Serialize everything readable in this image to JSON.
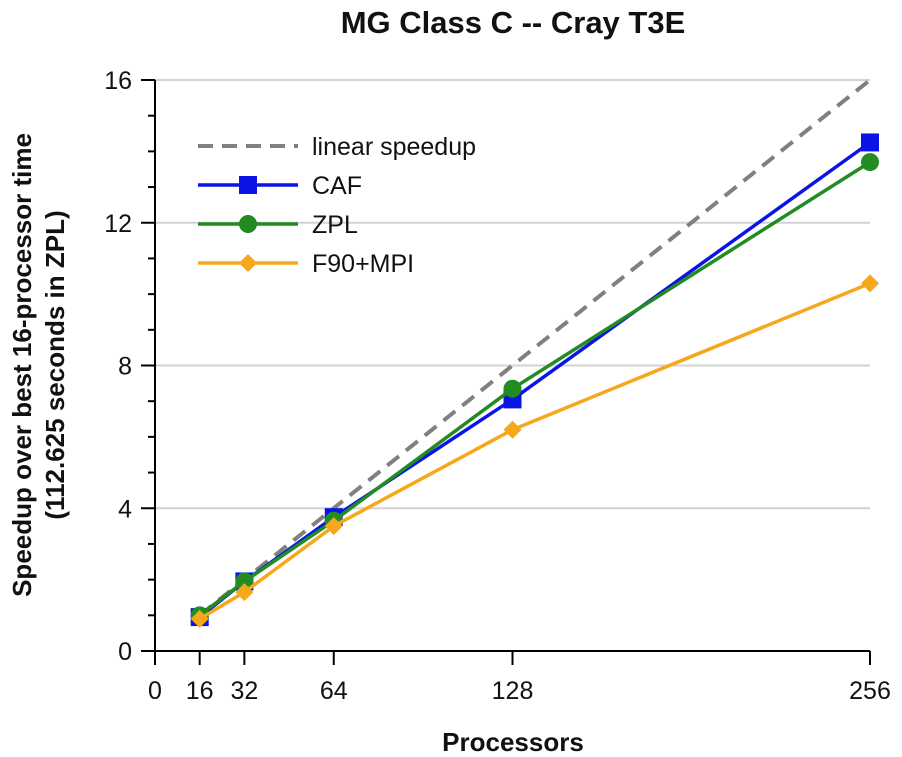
{
  "chart_data": {
    "type": "line",
    "title": "MG Class C -- Cray T3E",
    "xlabel": "Processors",
    "ylabel_line1": "Speedup over best 16-processor time",
    "ylabel_line2": "(112.625 seconds in ZPL)",
    "xlim": [
      0,
      256
    ],
    "ylim": [
      0,
      16
    ],
    "x_ticks": [
      0,
      16,
      32,
      64,
      128,
      256
    ],
    "y_ticks": [
      0,
      4,
      8,
      12,
      16
    ],
    "grid": "horizontal",
    "legend_position": "top-left",
    "x": [
      16,
      32,
      64,
      128,
      256
    ],
    "series": [
      {
        "name": "linear speedup",
        "x": [
          16,
          256
        ],
        "values": [
          1,
          16
        ],
        "color": "#808080",
        "style": "dashed",
        "marker": "none"
      },
      {
        "name": "CAF",
        "x": [
          16,
          32,
          64,
          128,
          256
        ],
        "values": [
          0.95,
          1.95,
          3.75,
          7.05,
          14.25
        ],
        "color": "#0a14e6",
        "style": "solid",
        "marker": "square"
      },
      {
        "name": "ZPL",
        "x": [
          16,
          32,
          64,
          128,
          256
        ],
        "values": [
          1.0,
          1.95,
          3.65,
          7.35,
          13.7
        ],
        "color": "#228b22",
        "style": "solid",
        "marker": "circle"
      },
      {
        "name": "F90+MPI",
        "x": [
          16,
          32,
          64,
          128,
          256
        ],
        "values": [
          0.9,
          1.65,
          3.5,
          6.2,
          10.3
        ],
        "color": "#f5a81c",
        "style": "solid",
        "marker": "diamond"
      }
    ]
  }
}
